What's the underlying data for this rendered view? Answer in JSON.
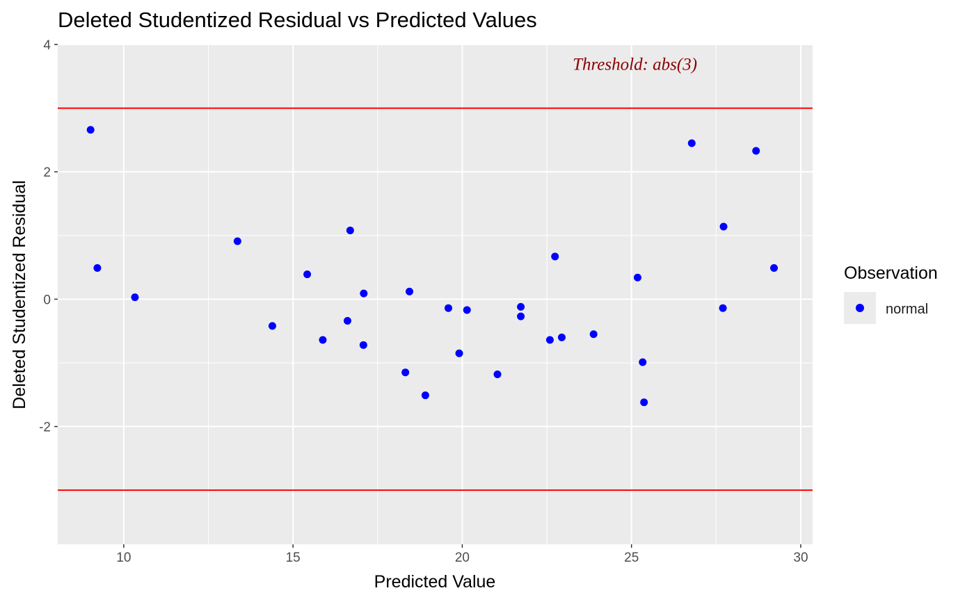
{
  "chart_data": {
    "type": "scatter",
    "title": "Deleted Studentized Residual vs Predicted Values",
    "xlabel": "Predicted Value",
    "ylabel": "Deleted Studentized Residual",
    "xlim": [
      8.05,
      30.35
    ],
    "ylim": [
      -3.85,
      4.0
    ],
    "x_major_ticks": [
      10,
      15,
      20,
      25,
      30
    ],
    "x_tick_labels": [
      "10",
      "15",
      "20",
      "25",
      "30"
    ],
    "y_major_ticks": [
      -2,
      0,
      2,
      4
    ],
    "y_tick_labels": [
      "-2",
      "0",
      "2",
      "4"
    ],
    "grid": true,
    "threshold_lines": [
      3,
      -3
    ],
    "threshold_color": "#ff0000",
    "annotation": {
      "text": "Threshold: abs(3)",
      "x": 25.1,
      "y": 3.7,
      "color": "#8b0000"
    },
    "point_color": "#0000ff",
    "panel_background": "#ebebeb",
    "legend": {
      "title": "Observation",
      "placement": "right",
      "entries": [
        "normal"
      ]
    },
    "series": [
      {
        "name": "normal",
        "points": [
          [
            9.02,
            2.66
          ],
          [
            9.22,
            0.49
          ],
          [
            10.33,
            0.03
          ],
          [
            13.36,
            0.91
          ],
          [
            14.39,
            -0.42
          ],
          [
            15.42,
            0.39
          ],
          [
            15.88,
            -0.64
          ],
          [
            16.61,
            -0.34
          ],
          [
            16.69,
            1.08
          ],
          [
            17.08,
            -0.72
          ],
          [
            17.09,
            0.09
          ],
          [
            18.32,
            -1.15
          ],
          [
            18.44,
            0.12
          ],
          [
            18.91,
            -1.51
          ],
          [
            19.59,
            -0.14
          ],
          [
            19.91,
            -0.85
          ],
          [
            20.14,
            -0.17
          ],
          [
            21.04,
            -1.18
          ],
          [
            21.73,
            -0.12
          ],
          [
            21.73,
            -0.27
          ],
          [
            22.59,
            -0.64
          ],
          [
            22.74,
            0.67
          ],
          [
            22.94,
            -0.6
          ],
          [
            23.88,
            -0.55
          ],
          [
            25.18,
            0.34
          ],
          [
            25.33,
            -0.99
          ],
          [
            25.37,
            -1.62
          ],
          [
            26.78,
            2.45
          ],
          [
            27.7,
            -0.14
          ],
          [
            27.72,
            1.14
          ],
          [
            28.68,
            2.33
          ],
          [
            29.21,
            0.49
          ]
        ]
      }
    ]
  }
}
